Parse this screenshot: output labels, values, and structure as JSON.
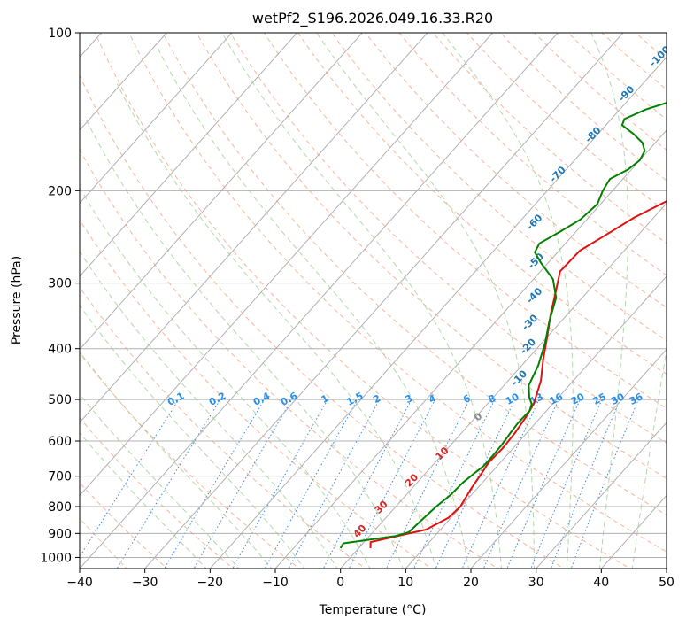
{
  "chart_data": {
    "type": "line",
    "title": "wetPf2_S196.2026.049.16.33.R20",
    "xlabel": "Temperature (°C)",
    "ylabel": "Pressure (hPa)",
    "xlim": [
      -40,
      50
    ],
    "ylim": [
      1050,
      100
    ],
    "y_scale": "log",
    "grid": true,
    "x_ticks": [
      "−40",
      "−30",
      "−20",
      "−10",
      "0",
      "10",
      "20",
      "30",
      "40",
      "50"
    ],
    "x_tick_values": [
      -40,
      -30,
      -20,
      -10,
      0,
      10,
      20,
      30,
      40,
      50
    ],
    "y_ticks": [
      "100",
      "200",
      "300",
      "400",
      "500",
      "600",
      "700",
      "800",
      "900",
      "1000"
    ],
    "y_tick_values": [
      100,
      200,
      300,
      400,
      500,
      600,
      700,
      800,
      900,
      1000
    ],
    "series": [
      {
        "color": "#e01010",
        "points": [
          [
            1.8,
            960
          ],
          [
            1.0,
            935
          ],
          [
            5.0,
            905
          ],
          [
            7.8,
            885
          ],
          [
            9.6,
            840
          ],
          [
            9.9,
            800
          ],
          [
            9.1,
            740
          ],
          [
            8.6,
            690
          ],
          [
            8.2,
            660
          ],
          [
            8.4,
            620
          ],
          [
            8.2,
            580
          ],
          [
            7.7,
            540
          ],
          [
            7.1,
            510
          ],
          [
            5.0,
            460
          ],
          [
            2.5,
            420
          ],
          [
            0.0,
            380
          ],
          [
            -2.5,
            345
          ],
          [
            -5.0,
            310
          ],
          [
            -7.0,
            285
          ],
          [
            -6.8,
            260
          ],
          [
            -5.2,
            245
          ],
          [
            -3.0,
            225
          ],
          [
            0.0,
            208
          ],
          [
            4.5,
            200
          ],
          [
            8.5,
            190
          ],
          [
            10.5,
            178
          ],
          [
            11.5,
            167
          ],
          [
            13.5,
            157
          ],
          [
            17.0,
            149
          ],
          [
            22.0,
            140
          ],
          [
            24.5,
            133
          ],
          [
            25.8,
            125
          ],
          [
            25.0,
            117
          ],
          [
            23.0,
            110
          ],
          [
            22.2,
            105
          ],
          [
            22.5,
            103
          ],
          [
            24.5,
            100
          ]
        ]
      },
      {
        "color": "#008000",
        "points": [
          [
            -2.8,
            960
          ],
          [
            -3.0,
            940
          ],
          [
            0.5,
            925
          ],
          [
            4.0,
            910
          ],
          [
            5.5,
            895
          ],
          [
            5.8,
            850
          ],
          [
            6.2,
            800
          ],
          [
            6.8,
            760
          ],
          [
            7.0,
            720
          ],
          [
            7.5,
            690
          ],
          [
            7.9,
            670
          ],
          [
            7.9,
            640
          ],
          [
            7.8,
            610
          ],
          [
            7.5,
            580
          ],
          [
            7.3,
            555
          ],
          [
            7.4,
            525
          ],
          [
            6.8,
            510
          ],
          [
            5.5,
            495
          ],
          [
            3.8,
            470
          ],
          [
            2.5,
            430
          ],
          [
            0.5,
            390
          ],
          [
            -1.8,
            355
          ],
          [
            -4.0,
            320
          ],
          [
            -7.0,
            295
          ],
          [
            -11.0,
            275
          ],
          [
            -13.5,
            262
          ],
          [
            -14.0,
            252
          ],
          [
            -12.5,
            240
          ],
          [
            -11.0,
            227
          ],
          [
            -10.5,
            212
          ],
          [
            -11.5,
            200
          ],
          [
            -12.0,
            190
          ],
          [
            -10.5,
            182
          ],
          [
            -10.0,
            175
          ],
          [
            -10.5,
            168
          ],
          [
            -12.0,
            162
          ],
          [
            -14.5,
            156
          ],
          [
            -17.5,
            150
          ],
          [
            -18.0,
            146
          ],
          [
            -16.0,
            140
          ],
          [
            -12.0,
            133
          ],
          [
            -9.0,
            125
          ],
          [
            -6.5,
            117
          ],
          [
            -4.0,
            109
          ],
          [
            -1.5,
            100
          ]
        ]
      }
    ],
    "annotations": {
      "dry_adiabats": [
        "-100",
        "-90",
        "-80",
        "-70",
        "-60",
        "-50",
        "-40",
        "-30",
        "-20",
        "-10",
        "0",
        "10",
        "20",
        "30",
        "40"
      ],
      "mixing_ratio": [
        "0.1",
        "0.2",
        "0.4",
        "0.6",
        "1",
        "1.5",
        "2",
        "3",
        "4",
        "6",
        "8",
        "10",
        "13",
        "16",
        "20",
        "25",
        "30",
        "36"
      ],
      "mixing_ratio_values": [
        0.1,
        0.2,
        0.4,
        0.6,
        1,
        1.5,
        2,
        3,
        4,
        6,
        8,
        10,
        13,
        16,
        20,
        25,
        30,
        36
      ],
      "colors": {
        "dry_adiabat_upper_label": "#1f77b4",
        "dry_adiabat_lower_label": "#d62728",
        "dry_adiabat_zero_label": "#888888",
        "mixing_ratio_label": "#2a8fe8"
      }
    },
    "colors": {
      "isotherm": "#b0b0b0",
      "dry_adiabat": "#f6a88a",
      "moist_adiabat": "#a8d5a0",
      "mixing_ratio": "#3a88e0",
      "background_curve": "#d4b48a"
    }
  }
}
